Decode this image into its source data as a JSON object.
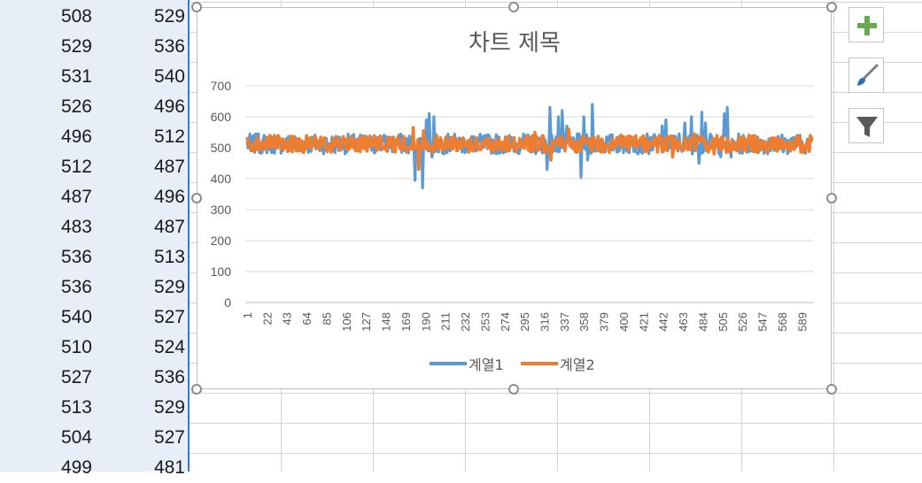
{
  "sheet": {
    "column_a": [
      "508",
      "529",
      "531",
      "526",
      "496",
      "512",
      "487",
      "483",
      "536",
      "536",
      "540",
      "510",
      "527",
      "513",
      "504",
      "499"
    ],
    "column_b": [
      "529",
      "536",
      "540",
      "496",
      "512",
      "487",
      "496",
      "487",
      "513",
      "529",
      "527",
      "524",
      "536",
      "529",
      "527",
      "481"
    ]
  },
  "chart_data": {
    "type": "line",
    "title": "차트 제목",
    "ylim": [
      0,
      700
    ],
    "y_ticks": [
      "0",
      "100",
      "200",
      "300",
      "400",
      "500",
      "600",
      "700"
    ],
    "x_tick_labels": [
      "1",
      "22",
      "43",
      "64",
      "85",
      "106",
      "127",
      "148",
      "169",
      "190",
      "211",
      "232",
      "253",
      "274",
      "295",
      "316",
      "337",
      "358",
      "379",
      "400",
      "421",
      "442",
      "463",
      "484",
      "505",
      "526",
      "547",
      "568",
      "589"
    ],
    "x_count": 600,
    "grid": true,
    "legend_position": "bottom",
    "series": [
      {
        "name": "계열1",
        "color": "#5b9bd5",
        "typical_range": [
          480,
          545
        ],
        "spikes": [
          [
            178,
            395
          ],
          [
            181,
            460
          ],
          [
            186,
            370
          ],
          [
            190,
            590
          ],
          [
            193,
            610
          ],
          [
            196,
            470
          ],
          [
            198,
            600
          ],
          [
            318,
            430
          ],
          [
            321,
            630
          ],
          [
            326,
            490
          ],
          [
            330,
            600
          ],
          [
            334,
            620
          ],
          [
            339,
            570
          ],
          [
            354,
            405
          ],
          [
            357,
            600
          ],
          [
            361,
            460
          ],
          [
            366,
            640
          ],
          [
            370,
            490
          ],
          [
            440,
            570
          ],
          [
            444,
            590
          ],
          [
            448,
            500
          ],
          [
            458,
            545
          ],
          [
            464,
            580
          ],
          [
            471,
            600
          ],
          [
            479,
            450
          ],
          [
            482,
            615
          ],
          [
            486,
            580
          ],
          [
            502,
            470
          ],
          [
            506,
            610
          ],
          [
            509,
            630
          ],
          [
            513,
            470
          ]
        ]
      },
      {
        "name": "계열2",
        "color": "#ed7d31",
        "typical_range": [
          485,
          540
        ],
        "spikes": [
          [
            176,
            565
          ],
          [
            182,
            430
          ],
          [
            187,
            555
          ],
          [
            305,
            550
          ],
          [
            322,
            460
          ],
          [
            341,
            560
          ],
          [
            437,
            540
          ],
          [
            451,
            470
          ],
          [
            474,
            545
          ],
          [
            495,
            480
          ]
        ]
      }
    ]
  },
  "side_buttons": [
    {
      "icon": "plus-icon",
      "color": "#6aa84f"
    },
    {
      "icon": "paintbrush-icon",
      "color": "#2f6db5"
    },
    {
      "icon": "filter-icon",
      "color": "#595959"
    }
  ]
}
